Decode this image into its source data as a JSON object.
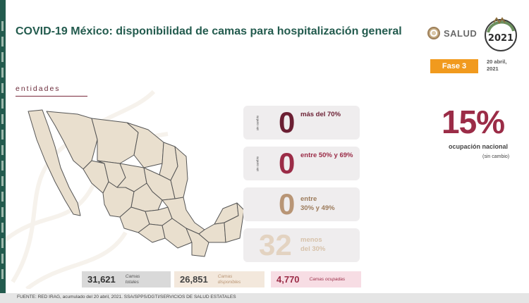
{
  "title": "COVID-19 México: disponibilidad de camas para hospitalización general",
  "logos": {
    "salud": "SALUD",
    "year_logo": "2021"
  },
  "fase": "Fase 3",
  "date_line1": "20 abril,",
  "date_line2": "2021",
  "entidades": "entidades",
  "cards": [
    {
      "side": "sin cambio",
      "value": "0",
      "label1": "más del 70%",
      "label2": "",
      "color": "#6b1f33"
    },
    {
      "side": "sin cambio",
      "value": "0",
      "label1": "entre 50% y 69%",
      "label2": "",
      "color": "#9b2c47"
    },
    {
      "side": "",
      "value": "0",
      "label1": "entre",
      "label2": "30% y 49%",
      "color": "#b89575"
    },
    {
      "side": "",
      "value": "32",
      "label1": "menos",
      "label2": "del 30%",
      "color": "#e3d3c1"
    }
  ],
  "ocupacion": {
    "value": "15%",
    "label": "ocupación nacional",
    "sub": "(sin cambio)"
  },
  "stats": [
    {
      "value": "31,621",
      "label1": "Camas",
      "label2": "totales"
    },
    {
      "value": "26,851",
      "label1": "Camas",
      "label2": "disponibles"
    },
    {
      "value": "4,770",
      "label1": "Camas ocupadas",
      "label2": ""
    }
  ],
  "footer": "FUENTE: RED IRAG, acumulado del 20 abril, 2021.  SSA/SPPS/DGTI/SERVICIOS DE SALUD ESTATALES",
  "colors": {
    "green": "#235b4e",
    "wine": "#9b2c47",
    "orange": "#f19a1e",
    "beige": "#b89575"
  }
}
